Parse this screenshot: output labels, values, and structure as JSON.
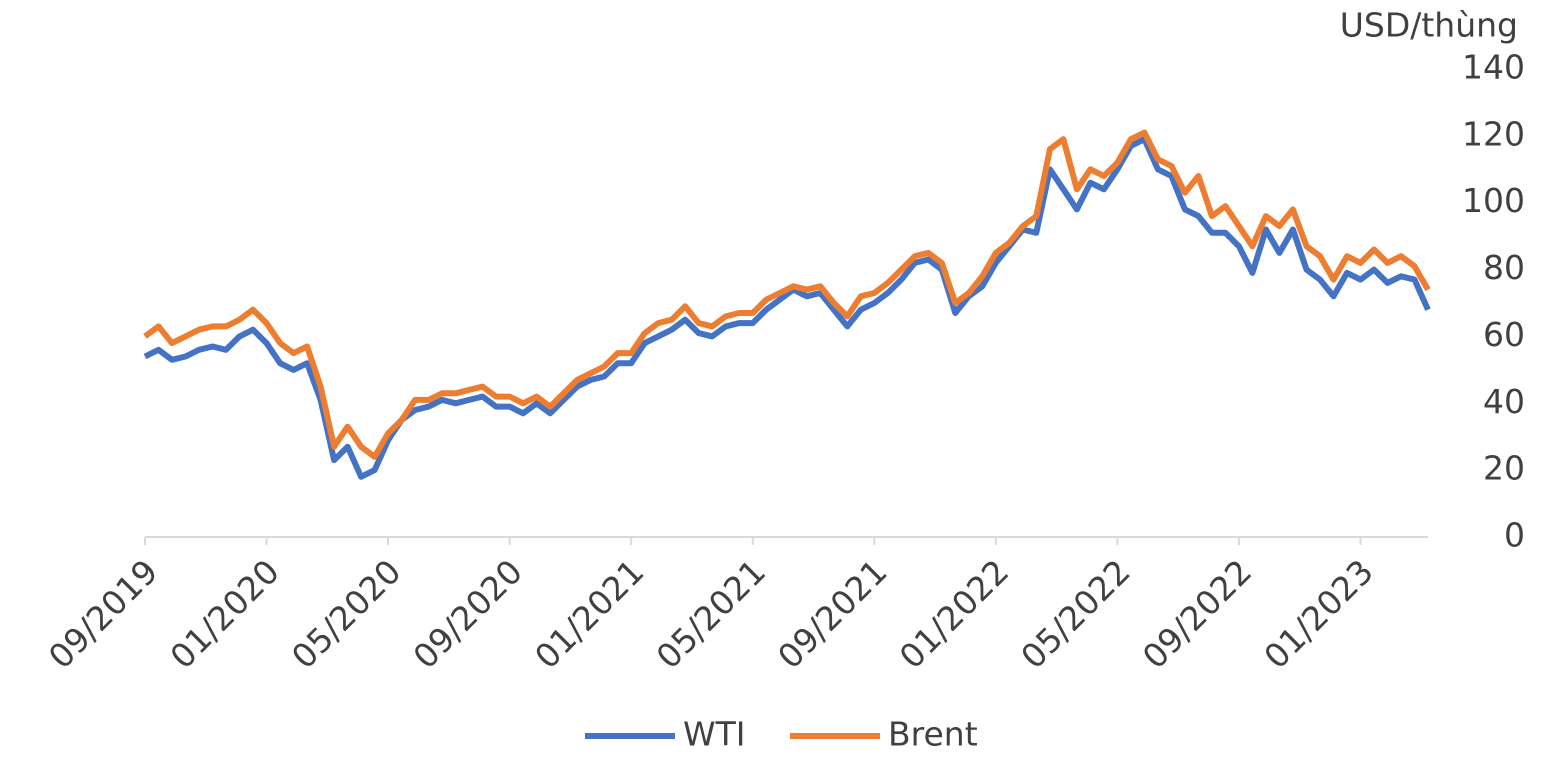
{
  "chart_data": {
    "type": "line",
    "y_axis_label": "USD/thùng",
    "categories": [
      "09/2019",
      null,
      null,
      null,
      null,
      null,
      null,
      null,
      null,
      "01/2020",
      null,
      null,
      null,
      null,
      null,
      null,
      null,
      null,
      "05/2020",
      null,
      null,
      null,
      null,
      null,
      null,
      null,
      null,
      "09/2020",
      null,
      null,
      null,
      null,
      null,
      null,
      null,
      null,
      "01/2021",
      null,
      null,
      null,
      null,
      null,
      null,
      null,
      null,
      "05/2021",
      null,
      null,
      null,
      null,
      null,
      null,
      null,
      null,
      "09/2021",
      null,
      null,
      null,
      null,
      null,
      null,
      null,
      null,
      "01/2022",
      null,
      null,
      null,
      null,
      null,
      null,
      null,
      null,
      "05/2022",
      null,
      null,
      null,
      null,
      null,
      null,
      null,
      null,
      "09/2022",
      null,
      null,
      null,
      null,
      null,
      null,
      null,
      null,
      "01/2023",
      null,
      null,
      null,
      null,
      null
    ],
    "series": [
      {
        "name": "WTI",
        "color": "#4472c4",
        "values": [
          54,
          56,
          53,
          54,
          56,
          57,
          56,
          60,
          62,
          58,
          52,
          50,
          52,
          41,
          23,
          27,
          18,
          20,
          29,
          35,
          38,
          39,
          41,
          40,
          41,
          42,
          39,
          39,
          37,
          40,
          37,
          41,
          45,
          47,
          48,
          52,
          52,
          58,
          60,
          62,
          65,
          61,
          60,
          63,
          64,
          64,
          68,
          71,
          74,
          72,
          73,
          68,
          63,
          68,
          70,
          73,
          77,
          82,
          83,
          80,
          67,
          72,
          75,
          82,
          87,
          92,
          91,
          110,
          104,
          98,
          106,
          104,
          110,
          117,
          119,
          110,
          108,
          98,
          96,
          91,
          91,
          87,
          79,
          92,
          85,
          92,
          80,
          77,
          72,
          79,
          77,
          80,
          76,
          78,
          77,
          68
        ]
      },
      {
        "name": "Brent",
        "color": "#ed7d31",
        "values": [
          60,
          63,
          58,
          60,
          62,
          63,
          63,
          65,
          68,
          64,
          58,
          55,
          57,
          45,
          27,
          33,
          27,
          24,
          31,
          35,
          41,
          41,
          43,
          43,
          44,
          45,
          42,
          42,
          40,
          42,
          39,
          43,
          47,
          49,
          51,
          55,
          55,
          61,
          64,
          65,
          69,
          64,
          63,
          66,
          67,
          67,
          71,
          73,
          75,
          74,
          75,
          70,
          66,
          72,
          73,
          76,
          80,
          84,
          85,
          82,
          70,
          73,
          78,
          85,
          88,
          93,
          96,
          116,
          119,
          104,
          110,
          108,
          112,
          119,
          121,
          113,
          111,
          103,
          108,
          96,
          99,
          93,
          87,
          96,
          93,
          98,
          87,
          84,
          77,
          84,
          82,
          86,
          82,
          84,
          81,
          74
        ]
      }
    ],
    "ylim": [
      0,
      140
    ],
    "yticks": [
      0,
      20,
      40,
      60,
      80,
      100,
      120,
      140
    ],
    "grid": false,
    "legend": "bottom"
  }
}
